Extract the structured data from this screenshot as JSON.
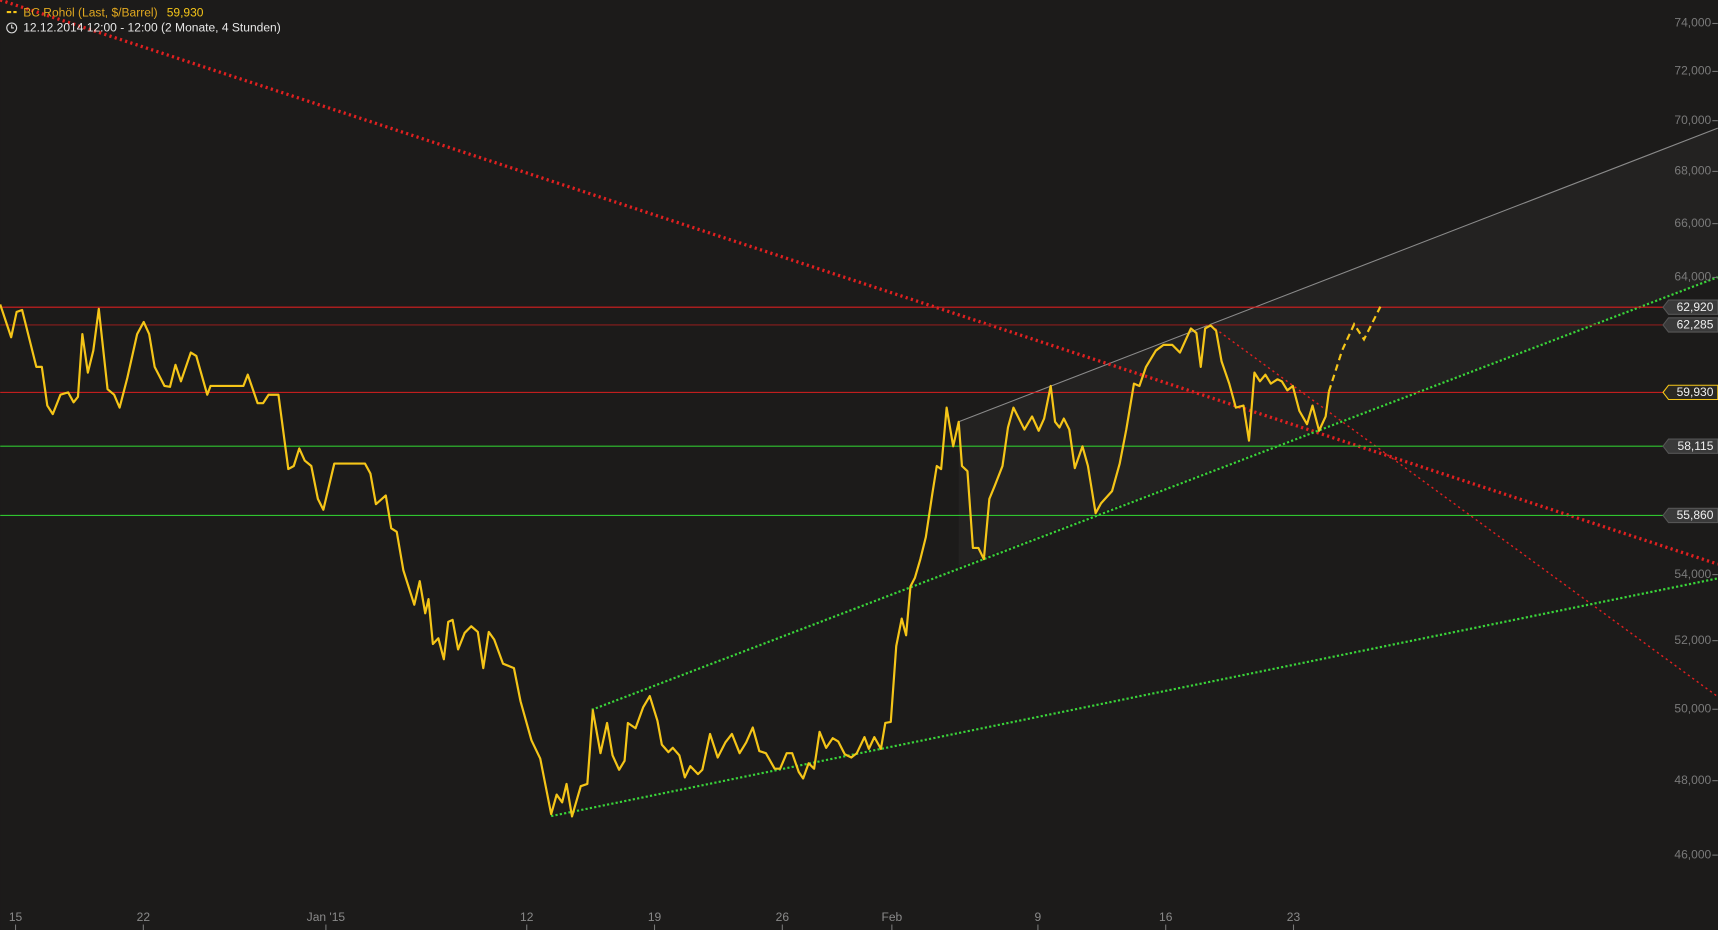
{
  "chart_data": {
    "type": "line",
    "subtitle": "12.12.2014 12:00 - 12:00 (2 Monate, 4 Stunden)",
    "log_scale": true,
    "xlim": [
      -0.84,
      93.24
    ],
    "ylim": [
      44600,
      75000
    ],
    "xticks": [
      {
        "value": 0,
        "label": "15"
      },
      {
        "value": 7,
        "label": "22"
      },
      {
        "value": 17,
        "label": "Jan '15"
      },
      {
        "value": 28,
        "label": "12"
      },
      {
        "value": 35,
        "label": "19"
      },
      {
        "value": 42,
        "label": "26"
      },
      {
        "value": 48,
        "label": "Feb"
      },
      {
        "value": 56,
        "label": "9"
      },
      {
        "value": 63,
        "label": "16"
      },
      {
        "value": 70,
        "label": "23"
      }
    ],
    "yticks": [
      {
        "value": 74000,
        "label": "74,000"
      },
      {
        "value": 72000,
        "label": "72,000"
      },
      {
        "value": 70000,
        "label": "70,000"
      },
      {
        "value": 68000,
        "label": "68,000"
      },
      {
        "value": 66000,
        "label": "66,000"
      },
      {
        "value": 64000,
        "label": "64,000"
      },
      {
        "value": 54000,
        "label": "54,000"
      },
      {
        "value": 52000,
        "label": "52,000"
      },
      {
        "value": 50000,
        "label": "50,000"
      },
      {
        "value": 48000,
        "label": "48,000"
      },
      {
        "value": 46000,
        "label": "46,000"
      }
    ],
    "series": [
      {
        "name": "BC Rohöl (Last, $/Barrel)",
        "color": "#f5c518",
        "last": {
          "value": 59930,
          "label": "59,930"
        },
        "x": [
          -0.84,
          -0.24,
          0.06,
          0.36,
          1.14,
          1.44,
          1.74,
          2.04,
          2.46,
          2.88,
          3.18,
          3.42,
          3.66,
          3.96,
          4.26,
          4.56,
          5.04,
          5.4,
          5.7,
          6.12,
          6.66,
          7.02,
          7.32,
          7.62,
          8.16,
          8.46,
          8.76,
          9.06,
          9.6,
          9.9,
          10.5,
          10.68,
          12.48,
          12.72,
          13.26,
          13.56,
          13.86,
          14.4,
          14.94,
          15.24,
          15.54,
          15.84,
          16.2,
          16.56,
          16.86,
          17.46,
          19.14,
          19.44,
          19.74,
          20.28,
          20.58,
          20.88,
          21.24,
          21.84,
          22.14,
          22.44,
          22.62,
          22.86,
          23.16,
          23.46,
          23.7,
          23.94,
          24.24,
          24.6,
          24.96,
          25.32,
          25.62,
          25.92,
          26.22,
          26.7,
          27.3,
          27.66,
          28.26,
          28.74,
          29.34,
          29.64,
          29.94,
          30.18,
          30.48,
          30.96,
          31.32,
          31.62,
          32.04,
          32.4,
          32.7,
          33.06,
          33.36,
          33.54,
          33.96,
          34.38,
          34.74,
          35.16,
          35.4,
          35.76,
          36.0,
          36.36,
          36.66,
          36.96,
          37.38,
          37.62,
          38.04,
          38.46,
          38.88,
          39.24,
          39.66,
          40.02,
          40.38,
          40.74,
          41.1,
          41.58,
          41.88,
          42.24,
          42.54,
          42.9,
          43.14,
          43.44,
          43.74,
          44.04,
          44.4,
          44.76,
          45.06,
          45.42,
          45.78,
          46.08,
          46.5,
          46.74,
          47.04,
          47.4,
          47.64,
          47.94,
          48.24,
          48.54,
          48.78,
          49.02,
          49.26,
          49.56,
          49.86,
          50.22,
          50.46,
          50.7,
          51.0,
          51.36,
          51.66,
          51.84,
          52.14,
          52.44,
          52.74,
          53.04,
          53.34,
          53.64,
          54.06,
          54.36,
          54.66,
          55.26,
          55.68,
          56.04,
          56.34,
          56.7,
          56.94,
          57.18,
          57.42,
          57.72,
          58.02,
          58.44,
          58.74,
          59.16,
          59.46,
          60.06,
          60.48,
          60.84,
          61.26,
          61.56,
          61.92,
          62.46,
          62.88,
          63.36,
          63.78,
          64.38,
          64.68,
          64.92,
          65.16,
          65.46,
          65.76,
          66.06,
          66.48,
          66.84,
          67.26,
          67.56,
          67.86,
          68.16,
          68.46,
          68.76,
          69.12,
          69.36,
          69.66,
          69.96,
          70.32,
          70.74,
          71.04,
          71.4,
          71.76,
          71.94
        ],
        "values": [
          63020,
          61850,
          62750,
          62820,
          60810,
          60810,
          59480,
          59190,
          59850,
          59930,
          59590,
          59780,
          61960,
          60610,
          61380,
          62860,
          60040,
          59850,
          59410,
          60420,
          61960,
          62390,
          61960,
          60810,
          60150,
          60120,
          60880,
          60310,
          61310,
          61190,
          59850,
          60150,
          60150,
          60540,
          59560,
          59560,
          59850,
          59850,
          57360,
          57460,
          58040,
          57640,
          57460,
          56390,
          56040,
          57540,
          57540,
          57210,
          56220,
          56500,
          55450,
          55340,
          54140,
          53080,
          53800,
          52820,
          53250,
          51900,
          52070,
          51450,
          52560,
          52620,
          51740,
          52230,
          52430,
          52260,
          51190,
          52260,
          52030,
          51320,
          51190,
          50230,
          49120,
          48610,
          47090,
          47620,
          47410,
          47910,
          47030,
          47850,
          47910,
          49970,
          48760,
          49610,
          48700,
          48300,
          48550,
          49610,
          49460,
          50060,
          50380,
          49670,
          49000,
          48790,
          48910,
          48700,
          48090,
          48400,
          48180,
          48300,
          49300,
          48640,
          49060,
          49300,
          48760,
          49060,
          49480,
          48820,
          48760,
          48330,
          48330,
          48760,
          48760,
          48240,
          48060,
          48480,
          48330,
          49360,
          48910,
          49180,
          49090,
          48730,
          48640,
          48760,
          49210,
          48880,
          49210,
          48880,
          49610,
          49640,
          51840,
          52660,
          52160,
          53640,
          53900,
          54480,
          55170,
          56570,
          57460,
          57360,
          59410,
          58110,
          58930,
          57460,
          57290,
          54830,
          54830,
          54480,
          56390,
          56820,
          57460,
          58740,
          59410,
          58670,
          59110,
          58630,
          59040,
          60150,
          58930,
          58740,
          59040,
          58670,
          57390,
          58110,
          57460,
          55930,
          56250,
          56640,
          57540,
          58670,
          60230,
          60150,
          60810,
          61380,
          61580,
          61580,
          61310,
          62160,
          62000,
          60810,
          62160,
          62270,
          62080,
          61000,
          60230,
          59410,
          59480,
          58300,
          60610,
          60310,
          60540,
          60230,
          60380,
          60310,
          60000,
          60150,
          59300,
          58850,
          59480,
          58630,
          59110,
          59960
        ]
      }
    ],
    "projection": {
      "color": "#f5c518",
      "x": [
        71.94,
        72.66,
        73.32,
        73.86,
        74.76
      ],
      "values": [
        59960,
        61380,
        62310,
        61770,
        62940
      ]
    },
    "levels": [
      {
        "value": 62920,
        "label": "62,920",
        "color": "#d81f1f"
      },
      {
        "value": 62285,
        "label": "62,285",
        "color": "#8a1c1c"
      },
      {
        "value": 59930,
        "label": "59,930",
        "color": "#d81f1f"
      },
      {
        "value": 58115,
        "label": "58,115",
        "color": "#2fc42f"
      },
      {
        "value": 55860,
        "label": "55,860",
        "color": "#2fc42f"
      }
    ]
  }
}
